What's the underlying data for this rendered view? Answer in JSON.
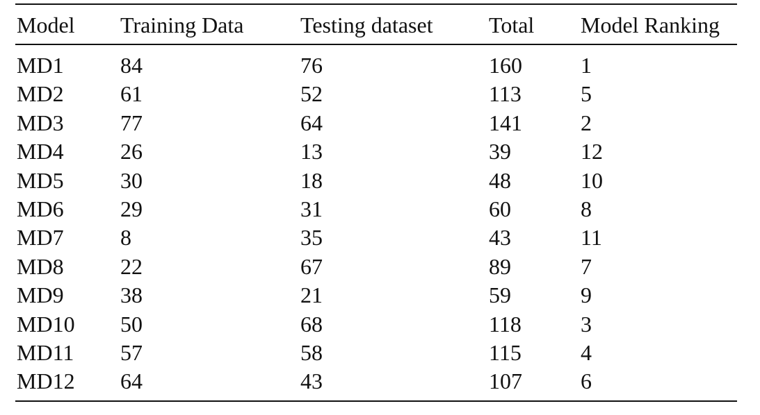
{
  "table": {
    "columns": [
      "Model",
      "Training Data",
      "Testing dataset",
      "Total",
      "Model Ranking"
    ],
    "rows": [
      [
        "MD1",
        84,
        76,
        160,
        1
      ],
      [
        "MD2",
        61,
        52,
        113,
        5
      ],
      [
        "MD3",
        77,
        64,
        141,
        2
      ],
      [
        "MD4",
        26,
        13,
        39,
        12
      ],
      [
        "MD5",
        30,
        18,
        48,
        10
      ],
      [
        "MD6",
        29,
        31,
        60,
        8
      ],
      [
        "MD7",
        8,
        35,
        43,
        11
      ],
      [
        "MD8",
        22,
        67,
        89,
        7
      ],
      [
        "MD9",
        38,
        21,
        59,
        9
      ],
      [
        "MD10",
        50,
        68,
        118,
        3
      ],
      [
        "MD11",
        57,
        58,
        115,
        4
      ],
      [
        "MD12",
        64,
        43,
        107,
        6
      ]
    ]
  }
}
